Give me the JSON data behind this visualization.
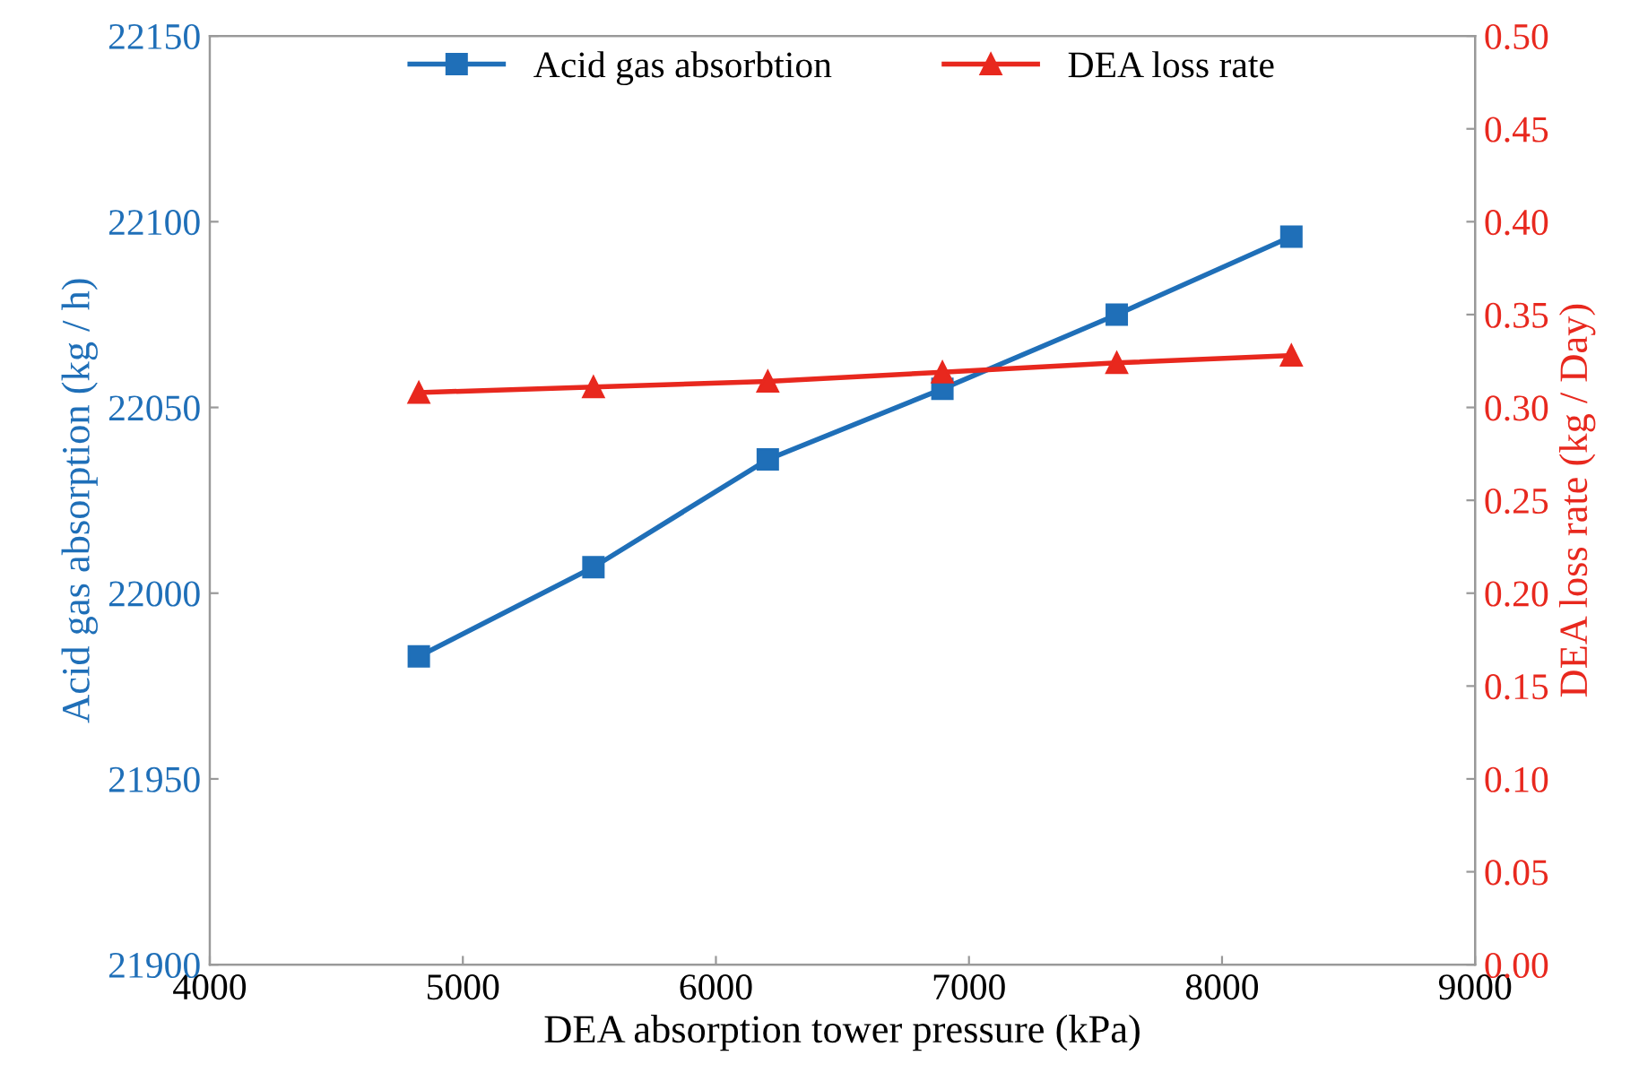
{
  "chart_data": {
    "type": "line",
    "xlabel": "DEA absorption tower pressure (kPa)",
    "ylabel": "Acid gas absorption (kg / h)",
    "y2label": "DEA loss rate (kg / Day)",
    "x": [
      4826,
      5516,
      6205,
      6895,
      7584,
      8274
    ],
    "series": [
      {
        "name": "Acid gas absorbtion",
        "color": "#1f6fb8",
        "marker": "square",
        "values": [
          21983,
          22007,
          22036,
          22055,
          22075,
          22096
        ]
      },
      {
        "name": "DEA loss rate",
        "color": "#e8281e",
        "marker": "triangle",
        "axis": "y2",
        "values": [
          0.308,
          0.311,
          0.314,
          0.319,
          0.324,
          0.328
        ]
      }
    ],
    "xlim": [
      4000,
      9000
    ],
    "xticks": [
      4000,
      5000,
      6000,
      7000,
      8000,
      9000
    ],
    "ylim": [
      21900,
      22150
    ],
    "yticks": [
      21900,
      21950,
      22000,
      22050,
      22100,
      22150
    ],
    "y2lim": [
      0,
      0.5
    ],
    "y2ticks": [
      {
        "value": 0,
        "label": "0.00"
      },
      {
        "value": 0.05,
        "label": "0.05"
      },
      {
        "value": 0.1,
        "label": "0.10"
      },
      {
        "value": 0.15,
        "label": "0.15"
      },
      {
        "value": 0.2,
        "label": "0.20"
      },
      {
        "value": 0.25,
        "label": "0.25"
      },
      {
        "value": 0.3,
        "label": "0.30"
      },
      {
        "value": 0.35,
        "label": "0.35"
      },
      {
        "value": 0.4,
        "label": "0.40"
      },
      {
        "value": 0.45,
        "label": "0.45"
      },
      {
        "value": 0.5,
        "label": "0.50"
      }
    ],
    "legend": "top",
    "grid": false
  }
}
